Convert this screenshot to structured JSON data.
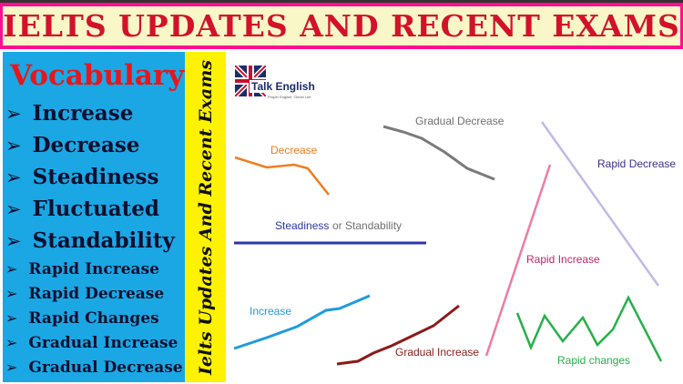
{
  "banner": {
    "title": "IELTS UPDATES AND RECENT EXAMS"
  },
  "vocabulary": {
    "title": "Vocabulary",
    "arrow_glyph": "➢",
    "items": [
      {
        "label": "Increase"
      },
      {
        "label": "Decrease"
      },
      {
        "label": "Steadiness"
      },
      {
        "label": "Fluctuated"
      },
      {
        "label": "Standability"
      },
      {
        "label": "Rapid Increase"
      },
      {
        "label": "Rapid Decrease"
      },
      {
        "label": "Rapid Changes"
      },
      {
        "label": "Gradual Increase"
      },
      {
        "label": "Gradual Decrease"
      }
    ]
  },
  "side_strip": {
    "text": "Ielts Updates And Recent Exams"
  },
  "logo": {
    "name": "Talk English",
    "tagline": "Proper English, Clever Life"
  },
  "graphs": {
    "decrease": {
      "label": "Decrease",
      "color": "#f07c1e"
    },
    "gradual_decrease": {
      "label": "Gradual Decrease",
      "color": "#7a7a7a"
    },
    "rapid_decrease": {
      "label": "Rapid Decrease",
      "color": "#c3b8e6",
      "label_color": "#3b2f8a"
    },
    "steadiness": {
      "label": "Steadiness",
      "color": "#2b35a8"
    },
    "standability": {
      "label": "or Standability",
      "color": "#6f6f6f"
    },
    "rapid_increase": {
      "label": "Rapid Increase",
      "color": "#f07aa8",
      "label_color": "#c2266b"
    },
    "increase": {
      "label": "Increase",
      "color": "#1e9be0"
    },
    "gradual_increase": {
      "label": "Gradual Increase",
      "color": "#8b1a1a"
    },
    "rapid_changes": {
      "label": "Rapid changes",
      "color": "#26b04a"
    }
  },
  "colors": {
    "banner_border": "#ff0f8f",
    "banner_bg": "#f9f7c8",
    "banner_text": "#d3122a",
    "panel_bg": "#1aa7e4",
    "strip_bg": "#fff200"
  }
}
